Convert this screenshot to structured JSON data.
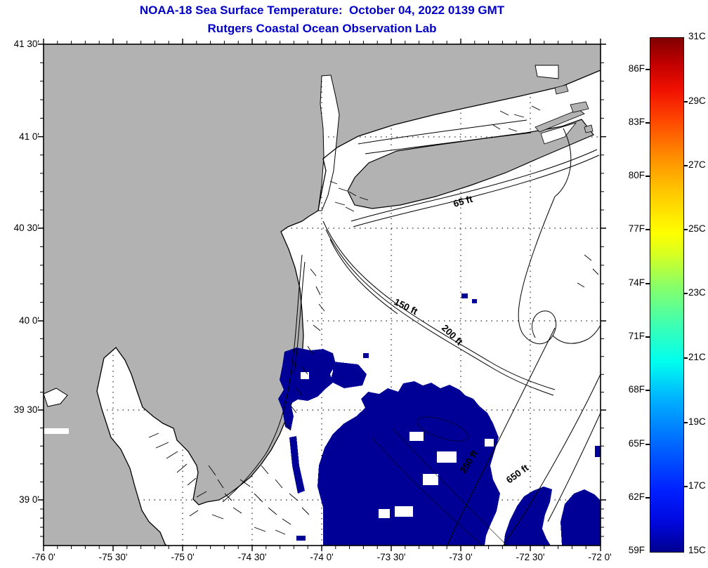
{
  "window": {
    "title_line1": "NOAA-18 Sea Surface Temperature:  October 04, 2022 0139 GMT",
    "title_line2": "Rutgers Coastal Ocean Observation Lab"
  },
  "map": {
    "region": "New Jersey / New York Bight coastal ocean",
    "contour_labels": [
      "65 ft",
      "150 ft",
      "200 ft",
      "250 ft",
      "650 ft"
    ],
    "land_color": "#b2b2b2",
    "ocean_color": "#ffffff",
    "sst_cold_patch_color": "#000096",
    "coastline_color": "#000000"
  },
  "axes": {
    "x_tick_labels": [
      "-76 0'",
      "-75 30'",
      "-75 0'",
      "-74 30'",
      "-74 0'",
      "-73 30'",
      "-73 0'",
      "-72 30'",
      "-72 0'"
    ],
    "y_tick_labels": [
      "41 30'",
      "41 0'",
      "40 30'",
      "40 0'",
      "39 30'",
      "39 0'"
    ]
  },
  "colorbar": {
    "fahrenheit_labels": [
      "86F",
      "83F",
      "80F",
      "77F",
      "74F",
      "71F",
      "68F",
      "65F",
      "62F",
      "59F"
    ],
    "celsius_labels": [
      "31C",
      "29C",
      "27C",
      "25C",
      "23C",
      "21C",
      "19C",
      "17C",
      "15C"
    ],
    "scale_min_c": 15,
    "scale_max_c": 31
  },
  "colors": {
    "title_blue": "#0000C8"
  }
}
